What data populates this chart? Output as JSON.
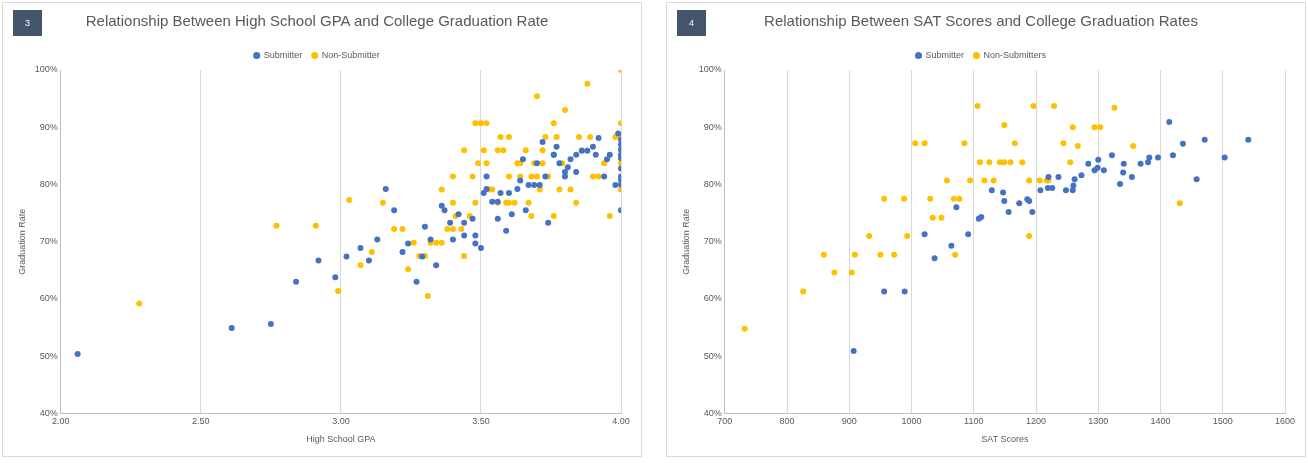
{
  "chart_data": [
    {
      "type": "scatter",
      "title": "Relationship Between High School GPA and College Graduation Rate",
      "xlabel": "High School GPA",
      "ylabel": "Graduation Rate",
      "annotations": [
        "3"
      ],
      "xlim": [
        2,
        4
      ],
      "xticks": [
        {
          "value": 2,
          "label": "2.00"
        },
        {
          "value": 2.5,
          "label": "2.50"
        },
        {
          "value": 3,
          "label": "3.00"
        },
        {
          "value": 3.5,
          "label": "3.50"
        },
        {
          "value": 4,
          "label": "4.00"
        }
      ],
      "ylim": [
        40,
        100
      ],
      "yticks": [
        {
          "value": 40,
          "label": "40%"
        },
        {
          "value": 50,
          "label": "50%"
        },
        {
          "value": 60,
          "label": "60%"
        },
        {
          "value": 70,
          "label": "70%"
        },
        {
          "value": 80,
          "label": "80%"
        },
        {
          "value": 90,
          "label": "90%"
        },
        {
          "value": 100,
          "label": "100%"
        }
      ],
      "grid": "x",
      "legend": "top",
      "marker": "circle",
      "series": [
        {
          "name": "Submitter",
          "color": "#4472c4",
          "x": [
            2.06,
            2.61,
            2.75,
            2.84,
            3.99,
            4.0,
            4.0,
            4.0,
            4.0,
            4.0,
            4.0,
            4.0,
            4.0,
            4.0,
            4.0,
            3.92,
            3.72,
            3.77,
            3.76,
            3.76,
            3.9,
            3.88,
            3.86,
            3.84,
            3.82,
            3.91,
            3.96,
            3.95,
            3.65,
            3.78,
            3.81,
            3.8,
            3.8,
            3.7,
            3.84,
            3.94,
            3.98,
            3.73,
            3.52,
            3.64,
            3.67,
            3.69,
            3.71,
            3.63,
            3.52,
            3.51,
            3.57,
            3.6,
            3.16,
            3.54,
            3.56,
            3.36,
            3.37,
            3.19,
            3.66,
            3.61,
            3.42,
            3.47,
            3.56,
            3.44,
            3.39,
            3.74,
            3.3,
            3.59,
            3.44,
            3.48,
            3.13,
            3.4,
            3.32,
            3.24,
            3.48,
            3.5,
            3.07,
            3.02,
            3.1,
            3.22,
            3.29,
            2.92,
            3.34,
            2.98,
            3.27
          ],
          "values": [
            50.4,
            54.9,
            55.6,
            63.0,
            88.9,
            87.8,
            87.0,
            86.1,
            85.2,
            84.6,
            82.8,
            81.4,
            80.8,
            80.0,
            75.5,
            88.1,
            87.4,
            86.6,
            85.2,
            85.2,
            86.6,
            85.9,
            85.9,
            85.2,
            84.4,
            85.2,
            85.2,
            84.4,
            84.4,
            83.7,
            83.0,
            82.2,
            81.4,
            83.7,
            82.2,
            81.4,
            79.9,
            81.4,
            81.4,
            80.7,
            79.9,
            79.9,
            79.9,
            79.2,
            79.2,
            78.5,
            78.5,
            78.5,
            79.2,
            77.0,
            77.0,
            76.3,
            75.5,
            75.5,
            75.5,
            74.8,
            74.8,
            74.0,
            74.0,
            73.3,
            73.3,
            73.3,
            72.6,
            71.9,
            71.1,
            71.1,
            70.4,
            70.4,
            70.4,
            69.7,
            69.7,
            68.9,
            68.9,
            67.4,
            66.7,
            68.2,
            67.4,
            66.7,
            65.9,
            63.8,
            63.0
          ]
        },
        {
          "name": "Non-Submitter",
          "color": "#ffc000",
          "x": [
            2.28,
            2.77,
            4.0,
            3.88,
            3.7,
            3.8,
            3.48,
            3.5,
            3.52,
            3.76,
            4.0,
            3.57,
            3.6,
            3.73,
            3.77,
            3.85,
            3.89,
            3.98,
            4.0,
            3.44,
            3.51,
            3.56,
            3.58,
            3.66,
            3.72,
            3.86,
            4.0,
            3.49,
            3.52,
            3.63,
            3.64,
            3.69,
            3.72,
            3.79,
            3.94,
            4.0,
            3.4,
            3.47,
            3.6,
            3.64,
            3.68,
            3.7,
            3.74,
            3.9,
            3.92,
            3.36,
            3.53,
            3.54,
            3.71,
            3.78,
            3.82,
            4.0,
            3.03,
            3.15,
            3.4,
            3.48,
            3.56,
            3.59,
            3.6,
            3.62,
            3.67,
            3.84,
            3.41,
            3.46,
            3.68,
            3.76,
            3.96,
            2.91,
            3.19,
            3.22,
            3.38,
            3.4,
            3.43,
            3.26,
            3.32,
            3.34,
            3.36,
            3.11,
            3.28,
            3.3,
            3.44,
            3.07,
            3.24,
            2.99,
            3.31
          ],
          "values": [
            59.2,
            72.8,
            100,
            97.6,
            95.4,
            93.0,
            90.7,
            90.7,
            90.7,
            90.7,
            90.7,
            88.3,
            88.3,
            88.3,
            88.3,
            88.3,
            88.3,
            88.3,
            88.3,
            86.0,
            86.0,
            86.0,
            86.0,
            86.0,
            86.0,
            86.0,
            86.0,
            83.7,
            83.7,
            83.7,
            83.7,
            83.7,
            83.7,
            83.7,
            83.7,
            83.7,
            81.4,
            81.4,
            81.4,
            81.4,
            81.4,
            81.4,
            81.4,
            81.4,
            81.4,
            79.1,
            79.1,
            79.1,
            79.1,
            79.1,
            79.1,
            79.1,
            77.3,
            76.8,
            76.8,
            76.8,
            76.8,
            76.8,
            76.8,
            76.8,
            76.8,
            76.8,
            74.5,
            74.5,
            74.5,
            74.5,
            74.5,
            72.8,
            72.2,
            72.2,
            72.2,
            72.2,
            72.2,
            69.8,
            69.8,
            69.8,
            69.8,
            68.2,
            67.5,
            67.5,
            67.5,
            65.9,
            65.2,
            61.4,
            60.5
          ]
        }
      ]
    },
    {
      "type": "scatter",
      "title": "Relationship Between SAT Scores and College Graduation Rates",
      "xlabel": "SAT Scores",
      "ylabel": "Graduation Rate",
      "annotations": [
        "4"
      ],
      "xlim": [
        700,
        1600
      ],
      "xticks": [
        700,
        800,
        900,
        1000,
        1100,
        1200,
        1300,
        1400,
        1500,
        1600
      ],
      "ylim": [
        40,
        100
      ],
      "yticks": [
        {
          "value": 40,
          "label": "40%"
        },
        {
          "value": 50,
          "label": "50%"
        },
        {
          "value": 60,
          "label": "60%"
        },
        {
          "value": 70,
          "label": "70%"
        },
        {
          "value": 80,
          "label": "80%"
        },
        {
          "value": 90,
          "label": "90%"
        },
        {
          "value": 100,
          "label": "100%"
        }
      ],
      "grid": "x",
      "legend": "top",
      "marker": "circle",
      "series": [
        {
          "name": "Submitter",
          "color": "#4472c4",
          "x": [
            907,
            956,
            989,
            1021,
            1037,
            1064,
            1072,
            1091,
            1108,
            1112,
            1129,
            1147,
            1149,
            1156,
            1173,
            1186,
            1189,
            1194,
            1207,
            1220,
            1219,
            1226,
            1236,
            1248,
            1259,
            1260,
            1262,
            1273,
            1284,
            1294,
            1299,
            1300,
            1309,
            1322,
            1335,
            1340,
            1341,
            1354,
            1368,
            1380,
            1382,
            1396,
            1414,
            1420,
            1436,
            1458,
            1471,
            1503,
            1541
          ],
          "values": [
            50.9,
            61.3,
            61.3,
            71.3,
            67.1,
            69.3,
            76.0,
            71.3,
            74.0,
            74.3,
            79.0,
            78.6,
            77.1,
            75.2,
            76.7,
            77.4,
            77.1,
            75.2,
            79.0,
            81.3,
            79.4,
            79.4,
            81.3,
            79.0,
            79.0,
            79.8,
            80.9,
            81.6,
            83.6,
            82.5,
            82.9,
            84.3,
            82.5,
            85.1,
            80.1,
            82.1,
            83.6,
            81.3,
            83.6,
            83.9,
            84.7,
            84.7,
            90.9,
            85.1,
            87.1,
            80.9,
            87.8,
            84.7,
            87.8
          ]
        },
        {
          "name": "Non-Submitters",
          "color": "#ffc000",
          "x": [
            732,
            826,
            859,
            876,
            904,
            909,
            932,
            950,
            956,
            972,
            988,
            993,
            1006,
            1021,
            1030,
            1034,
            1048,
            1057,
            1068,
            1077,
            1070,
            1085,
            1094,
            1106,
            1110,
            1117,
            1125,
            1132,
            1142,
            1149,
            1159,
            1149,
            1166,
            1178,
            1189,
            1189,
            1196,
            1206,
            1217,
            1220,
            1229,
            1244,
            1255,
            1259,
            1267,
            1294,
            1303,
            1326,
            1356,
            1431
          ],
          "values": [
            54.8,
            61.3,
            67.7,
            64.6,
            64.6,
            67.7,
            71.0,
            67.7,
            77.5,
            67.7,
            77.5,
            71.0,
            87.2,
            87.2,
            77.5,
            74.2,
            74.2,
            80.7,
            77.5,
            77.5,
            67.7,
            87.2,
            80.7,
            93.7,
            83.9,
            80.7,
            83.9,
            80.7,
            83.9,
            83.9,
            83.9,
            90.4,
            87.2,
            83.9,
            80.7,
            71.0,
            93.7,
            80.7,
            80.7,
            80.7,
            93.7,
            87.2,
            83.9,
            90.0,
            86.7,
            90.0,
            90.0,
            93.4,
            86.7,
            76.7
          ]
        }
      ]
    }
  ]
}
